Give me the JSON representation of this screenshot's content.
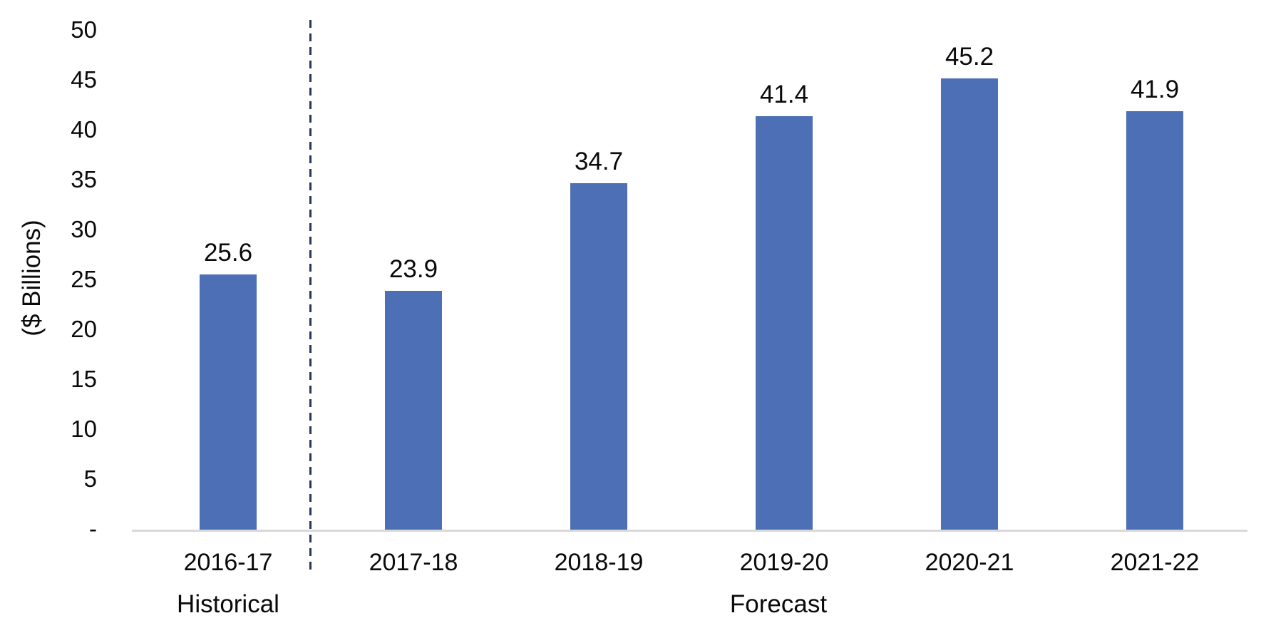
{
  "chart_data": {
    "type": "bar",
    "categories": [
      "2016-17",
      "2017-18",
      "2018-19",
      "2019-20",
      "2020-21",
      "2021-22"
    ],
    "values": [
      25.6,
      23.9,
      34.7,
      41.4,
      45.2,
      41.9
    ],
    "data_labels": [
      "25.6",
      "23.9",
      "34.7",
      "41.4",
      "45.2",
      "41.9"
    ],
    "title": "",
    "xlabel": "",
    "ylabel": "($ Billions)",
    "ylim": [
      0,
      50
    ],
    "ytick_step": 5,
    "ytick_labels": [
      "-",
      "5",
      "10",
      "15",
      "20",
      "25",
      "30",
      "35",
      "40",
      "45",
      "50"
    ],
    "grid": false,
    "legend": false,
    "bar_color": "#4C6FB5",
    "axis_line_color": "#D9D9D9",
    "separator": {
      "between_categories": [
        "2016-17",
        "2017-18"
      ],
      "style": "dashed",
      "color": "#24385C"
    },
    "annotations": [
      {
        "text": "Historical",
        "region_categories": [
          "2016-17"
        ]
      },
      {
        "text": "Forecast",
        "region_categories": [
          "2017-18",
          "2018-19",
          "2019-20",
          "2020-21",
          "2021-22"
        ]
      }
    ]
  },
  "labels": {
    "y_axis_title": "($ Billions)",
    "historical": "Historical",
    "forecast": "Forecast"
  }
}
